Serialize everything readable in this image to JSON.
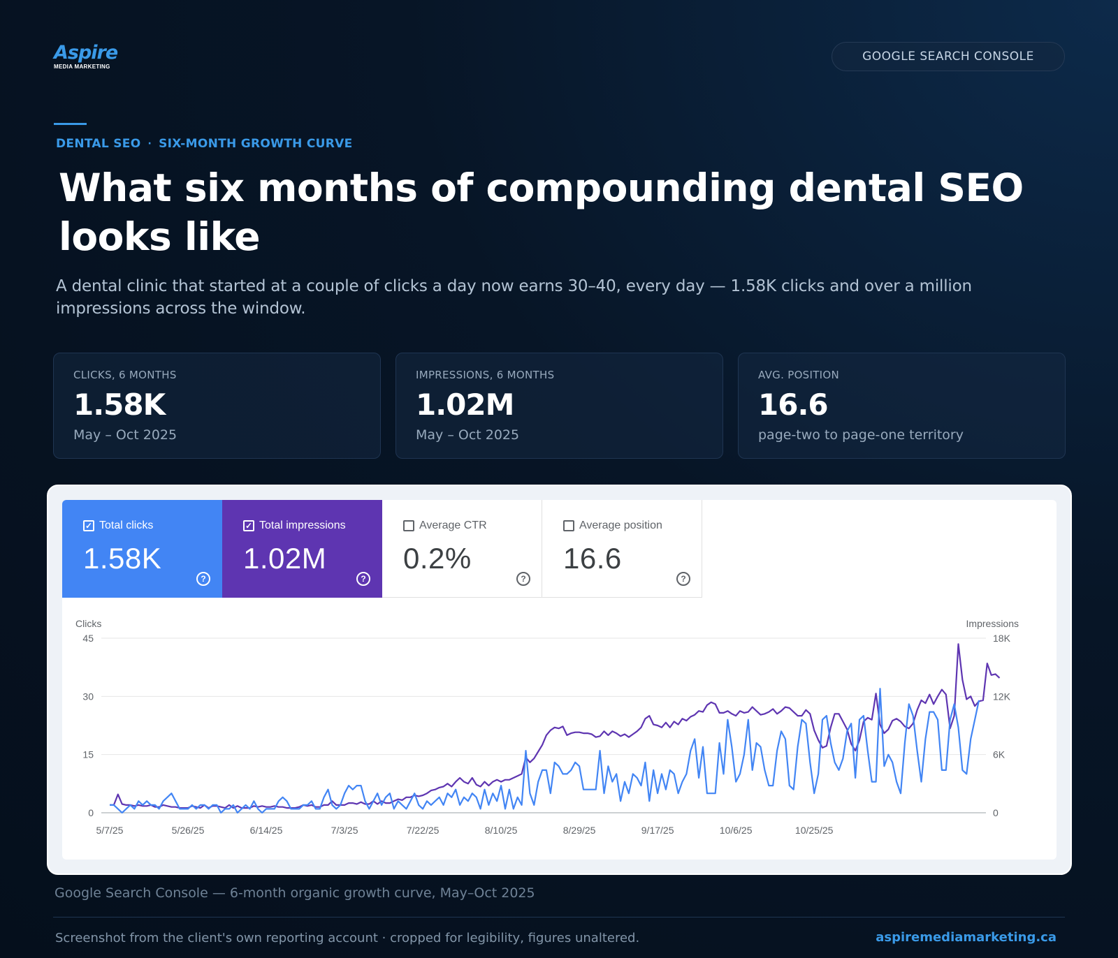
{
  "brand": {
    "logo_main": "Aspire",
    "logo_sub": "MEDIA MARKETING",
    "pill": "GOOGLE SEARCH CONSOLE"
  },
  "kicker": {
    "left": "DENTAL SEO",
    "separator": "·",
    "right": "SIX-MONTH GROWTH CURVE"
  },
  "headline": "What six months of compounding dental SEO looks like",
  "lede": "A dental clinic that started at a couple of clicks a day now earns 30–40, every day — 1.58K clicks and over a million impressions across the window.",
  "stats": [
    {
      "label": "CLICKS, 6 MONTHS",
      "value": "1.58K",
      "sub": "May – Oct 2025"
    },
    {
      "label": "IMPRESSIONS, 6 MONTHS",
      "value": "1.02M",
      "sub": "May – Oct 2025"
    },
    {
      "label": "AVG. POSITION",
      "value": "16.6",
      "sub": "page-two to page-one territory"
    }
  ],
  "gsc": {
    "tiles": [
      {
        "label": "Total clicks",
        "value": "1.58K",
        "checked": true
      },
      {
        "label": "Total impressions",
        "value": "1.02M",
        "checked": true
      },
      {
        "label": "Average CTR",
        "value": "0.2%",
        "checked": false
      },
      {
        "label": "Average position",
        "value": "16.6",
        "checked": false
      }
    ],
    "check_glyph": "✓",
    "help_glyph": "?"
  },
  "colors": {
    "clicks": "#4285f4",
    "impressions": "#5e35b1",
    "accent": "#3a9ae8"
  },
  "chart_data": {
    "type": "line",
    "ylabel_left": "Clicks",
    "ylabel_right": "Impressions",
    "yticks_left": [
      "0",
      "15",
      "30",
      "45"
    ],
    "yticks_right": [
      "0",
      "6K",
      "12K",
      "18K"
    ],
    "ylim_left": [
      0,
      45
    ],
    "ylim_right": [
      0,
      18000
    ],
    "xticks": [
      "5/7/25",
      "5/26/25",
      "6/14/25",
      "7/3/25",
      "7/22/25",
      "8/10/25",
      "8/29/25",
      "9/17/25",
      "10/6/25",
      "10/25/25"
    ],
    "grid": true,
    "series": [
      {
        "name": "Clicks",
        "axis": "left",
        "values": [
          2,
          2,
          1,
          0,
          1,
          2,
          1,
          3,
          2,
          3,
          2,
          2,
          1,
          3,
          4,
          5,
          3,
          1,
          1,
          1,
          2,
          1,
          2,
          2,
          1,
          2,
          2,
          0,
          1,
          1,
          2,
          0,
          1,
          2,
          1,
          3,
          1,
          0,
          1,
          1,
          1,
          3,
          4,
          3,
          1,
          1,
          1,
          2,
          2,
          3,
          1,
          1,
          4,
          6,
          2,
          1,
          2,
          5,
          7,
          6,
          7,
          7,
          3,
          1,
          3,
          5,
          2,
          4,
          5,
          1,
          3,
          2,
          1,
          3,
          5,
          2,
          1,
          3,
          2,
          3,
          4,
          2,
          5,
          4,
          6,
          2,
          4,
          3,
          5,
          4,
          1,
          6,
          2,
          5,
          3,
          7,
          1,
          6,
          1,
          4,
          2,
          16,
          5,
          2,
          8,
          11,
          11,
          5,
          13,
          12,
          10,
          10,
          11,
          13,
          12,
          6,
          6,
          6,
          6,
          16,
          5,
          12,
          8,
          10,
          3,
          8,
          5,
          10,
          9,
          7,
          13,
          3,
          11,
          5,
          10,
          6,
          11,
          10,
          5,
          8,
          10,
          16,
          19,
          9,
          17,
          5,
          5,
          5,
          18,
          10,
          24,
          17,
          8,
          10,
          15,
          24,
          11,
          18,
          17,
          11,
          7,
          7,
          16,
          21,
          19,
          7,
          6,
          17,
          24,
          23,
          13,
          5,
          10,
          24,
          25,
          18,
          13,
          11,
          14,
          21,
          23,
          9,
          24,
          25,
          16,
          8,
          8,
          32,
          12,
          15,
          13,
          8,
          5,
          18,
          28,
          25,
          16,
          8,
          19,
          26,
          26,
          24,
          11,
          11,
          24,
          28,
          22,
          11,
          10,
          19,
          24,
          29
        ]
      },
      {
        "name": "Impressions",
        "axis": "right",
        "values": [
          800,
          800,
          1900,
          900,
          800,
          800,
          700,
          800,
          700,
          700,
          800,
          600,
          600,
          800,
          700,
          600,
          600,
          500,
          500,
          500,
          700,
          600,
          500,
          800,
          500,
          700,
          700,
          600,
          500,
          800,
          500,
          700,
          500,
          500,
          500,
          700,
          600,
          700,
          600,
          600,
          700,
          600,
          600,
          500,
          500,
          500,
          600,
          800,
          700,
          800,
          600,
          600,
          800,
          800,
          1200,
          800,
          800,
          800,
          1000,
          1000,
          900,
          1100,
          900,
          900,
          1200,
          900,
          1200,
          1000,
          1000,
          1200,
          1400,
          1300,
          1600,
          1600,
          1800,
          1700,
          1800,
          2000,
          2300,
          2400,
          2600,
          2700,
          3000,
          2700,
          3200,
          3600,
          3200,
          3000,
          3600,
          2900,
          2700,
          3200,
          2800,
          3200,
          3400,
          3200,
          3400,
          3400,
          3600,
          3800,
          4000,
          5700,
          5200,
          5600,
          6300,
          7000,
          8000,
          8500,
          8800,
          8700,
          8900,
          8000,
          8200,
          8300,
          8300,
          8200,
          8200,
          8100,
          7800,
          7900,
          8400,
          8000,
          8400,
          8200,
          7900,
          8100,
          7800,
          8100,
          8400,
          8800,
          9700,
          10000,
          9100,
          9000,
          8800,
          9300,
          8800,
          9400,
          9100,
          9700,
          9500,
          9900,
          10100,
          10500,
          10400,
          11100,
          11400,
          11200,
          10300,
          10300,
          10500,
          10200,
          10000,
          10500,
          10300,
          10400,
          10900,
          10500,
          10100,
          10200,
          10400,
          10700,
          10200,
          10500,
          10900,
          10800,
          10400,
          10000,
          10000,
          10600,
          10200,
          8500,
          7500,
          6700,
          6900,
          8800,
          10200,
          10200,
          9400,
          8600,
          7100,
          6400,
          7500,
          9400,
          9800,
          9600,
          12300,
          9100,
          8200,
          8600,
          9500,
          9700,
          9400,
          8900,
          8700,
          9200,
          10600,
          11600,
          11300,
          12200,
          11200,
          12000,
          12700,
          12200,
          8700,
          10000,
          17400,
          13700,
          11700,
          12000,
          11000,
          11500,
          11600,
          15400,
          14200,
          14300,
          13900
        ]
      }
    ]
  },
  "footer": {
    "caption": "Google Search Console — 6-month organic growth curve, May–Oct 2025",
    "footnote": "Screenshot from the client's own reporting account · cropped for legibility, figures unaltered.",
    "url": "aspiremediamarketing.ca"
  }
}
